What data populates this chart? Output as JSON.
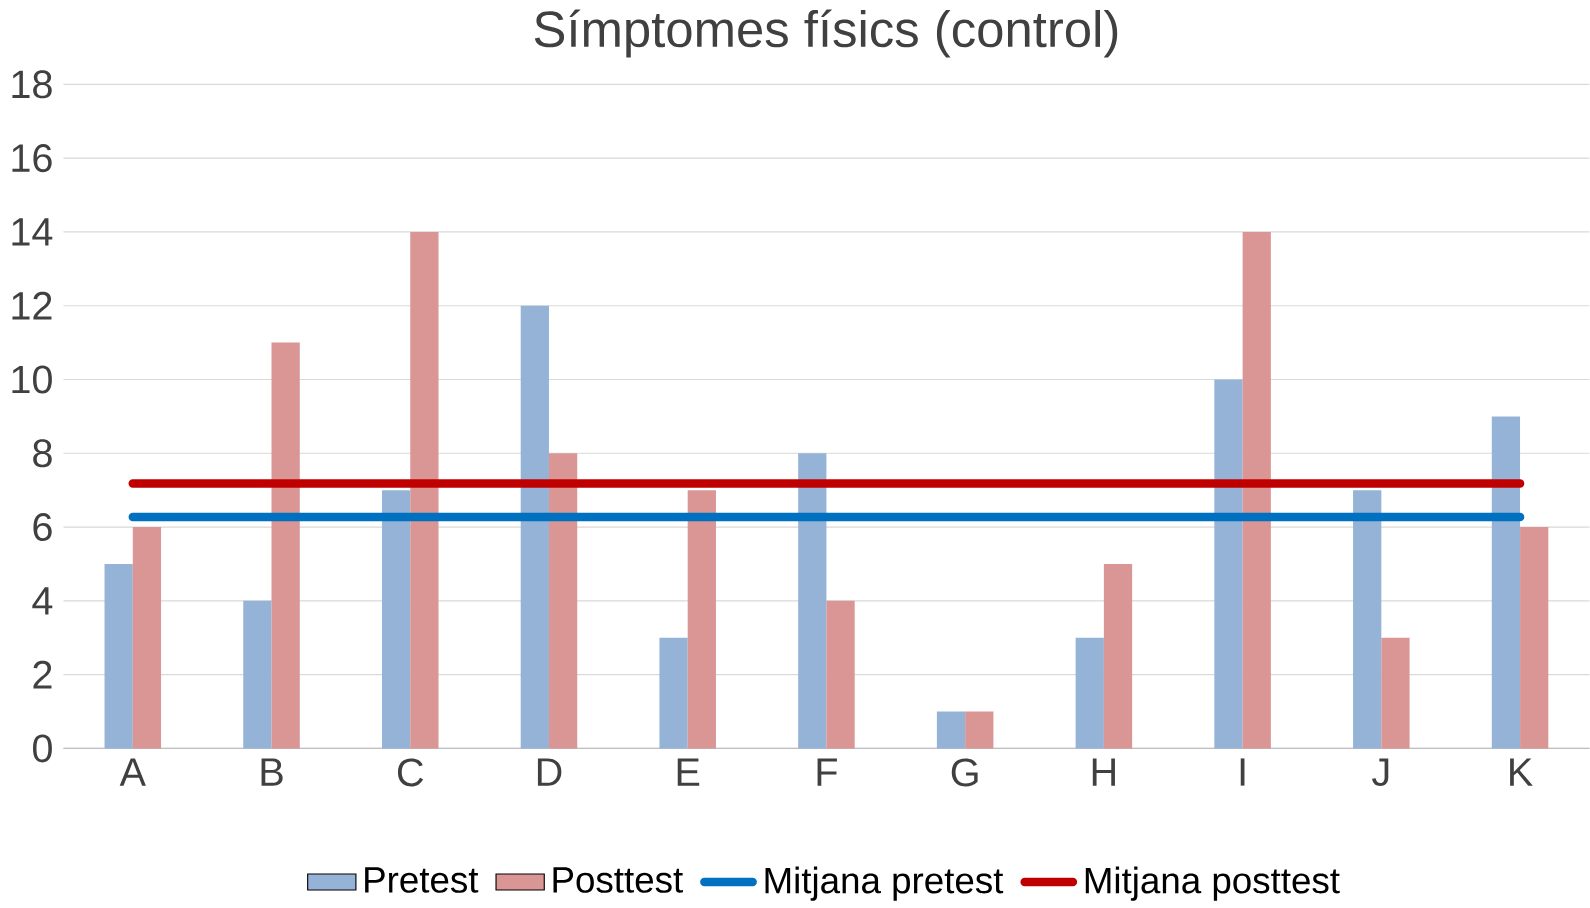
{
  "chart_data": {
    "type": "bar",
    "title": "Símptomes físics (control)",
    "categories": [
      "A",
      "B",
      "C",
      "D",
      "E",
      "F",
      "G",
      "H",
      "I",
      "J",
      "K"
    ],
    "series": [
      {
        "name": "Pretest",
        "color": "#95b3d7",
        "values": [
          5,
          4,
          7,
          12,
          3,
          8,
          1,
          3,
          10,
          7,
          9
        ]
      },
      {
        "name": "Posttest",
        "color": "#d99694",
        "values": [
          6,
          11,
          14,
          8,
          7,
          4,
          1,
          5,
          14,
          3,
          6
        ]
      },
      {
        "name": "Mitjana pretest",
        "type": "line",
        "color": "#0070c0",
        "values": [
          6.27,
          6.27,
          6.27,
          6.27,
          6.27,
          6.27,
          6.27,
          6.27,
          6.27,
          6.27,
          6.27
        ]
      },
      {
        "name": "Mitjana posttest",
        "type": "line",
        "color": "#c00000",
        "values": [
          7.18,
          7.18,
          7.18,
          7.18,
          7.18,
          7.18,
          7.18,
          7.18,
          7.18,
          7.18,
          7.18
        ]
      }
    ],
    "ylim": [
      0,
      18
    ],
    "yticks": [
      0,
      2,
      4,
      6,
      8,
      10,
      12,
      14,
      16,
      18
    ],
    "grid": "y",
    "legend": "bottom"
  }
}
